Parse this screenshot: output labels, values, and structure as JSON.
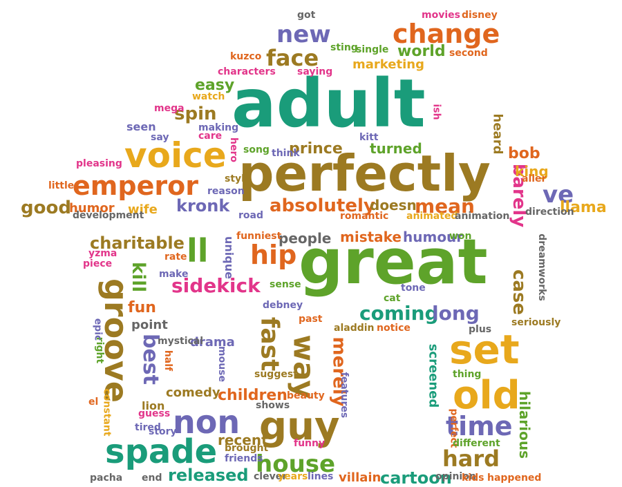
{
  "palette": {
    "teal": "#1a9c7a",
    "brown": "#9c7a22",
    "green": "#5ea32a",
    "orange": "#e0661e",
    "gold": "#e8a81c",
    "purple": "#6d68b5",
    "pink": "#e2358a",
    "gray": "#666666"
  },
  "words": [
    "adult",
    "perfectly",
    "great",
    "voice",
    "emperor",
    "groove",
    "guy",
    "non",
    "spade",
    "set",
    "old",
    "house",
    "change",
    "new",
    "face",
    "hip",
    "sidekick",
    "ll",
    "coming",
    "long",
    "way",
    "fast",
    "best",
    "kill",
    "time",
    "hard",
    "absolutely",
    "mean",
    "kronk",
    "good",
    "spin",
    "easy",
    "world",
    "marketing",
    "charitable",
    "released",
    "recent",
    "children",
    "comedy",
    "merely",
    "screened",
    "hilarious",
    "barely",
    "ve",
    "llama",
    "bob",
    "king",
    "prince",
    "turned",
    "heard",
    "doesn",
    "humor",
    "wife",
    "fun",
    "case",
    "cartoon",
    "villain",
    "drama",
    "lion",
    "mistake",
    "people",
    "humour",
    "unique",
    "funniest",
    "point",
    "dreamworks",
    "movies",
    "disney",
    "got",
    "sting",
    "single",
    "second",
    "kuzco",
    "characters",
    "saying",
    "watch",
    "mega",
    "seen",
    "making",
    "say",
    "care",
    "hero",
    "song",
    "think",
    "kitt",
    "ish",
    "pleasing",
    "little",
    "style",
    "reason",
    "aller",
    "development",
    "road",
    "romantic",
    "animated",
    "animation",
    "direction",
    "yzma",
    "piece",
    "rate",
    "make",
    "sense",
    "debney",
    "cat",
    "tone",
    "won",
    "past",
    "aladdin",
    "notice",
    "plus",
    "seriously",
    "mystical",
    "half",
    "right",
    "epic",
    "mouse",
    "suggest",
    "shows",
    "beauty",
    "features",
    "thing",
    "perfect",
    "different",
    "guess",
    "constant",
    "tired",
    "story",
    "brought",
    "friends",
    "funny",
    "pacha",
    "end",
    "clever",
    "years",
    "lines",
    "opinion",
    "kids",
    "happened",
    "el"
  ]
}
